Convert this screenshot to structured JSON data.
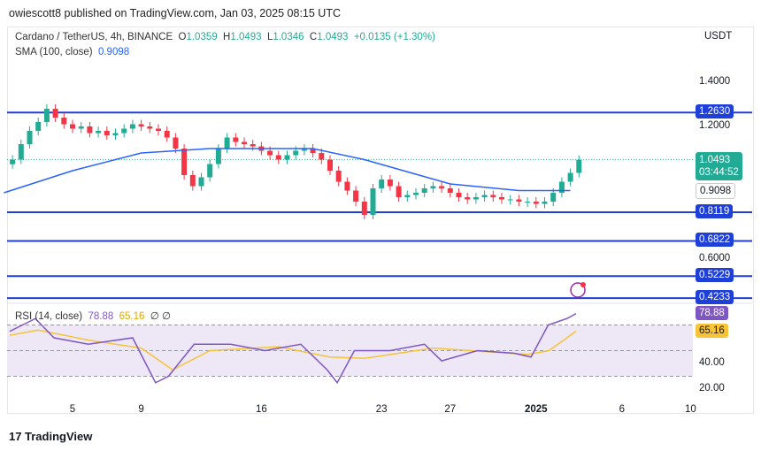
{
  "header": {
    "published": "owiescott8 published on TradingView.com, Jan 03, 2025 08:15 UTC"
  },
  "legend": {
    "symbol": "Cardano / TetherUS, 4h, BINANCE",
    "o_label": "O",
    "o": "1.0359",
    "h_label": "H",
    "h": "1.0493",
    "l_label": "L",
    "l": "1.0346",
    "c_label": "C",
    "c": "1.0493",
    "change": "+0.0135 (+1.30%)",
    "sma_label": "SMA (100, close)",
    "sma": "0.9098",
    "rsi_label": "RSI (14, close)",
    "rsi": "78.88",
    "rsi_ma": "65.16",
    "flags": "∅ ∅"
  },
  "brand": "TradingView",
  "currency": "USDT",
  "colors": {
    "up": "#22ab94",
    "down": "#f23645",
    "sma": "#2962ff",
    "levels": "#1e3fd8",
    "rsi": "#7e57c2",
    "rsi_ma": "#f7c338",
    "rsi_band": "#ede7f6"
  },
  "chart_data": [
    {
      "type": "candlestick",
      "interval": "4h",
      "start": "2024-12-01T12:00",
      "step_hours": 12,
      "closes": [
        1.05,
        1.12,
        1.18,
        1.22,
        1.28,
        1.24,
        1.21,
        1.19,
        1.2,
        1.17,
        1.18,
        1.16,
        1.17,
        1.19,
        1.21,
        1.2,
        1.19,
        1.18,
        1.15,
        1.1,
        0.98,
        0.93,
        0.97,
        1.03,
        1.1,
        1.15,
        1.13,
        1.12,
        1.11,
        1.09,
        1.07,
        1.05,
        1.07,
        1.09,
        1.1,
        1.08,
        1.05,
        1.0,
        0.95,
        0.91,
        0.86,
        0.8,
        0.92,
        0.96,
        0.93,
        0.88,
        0.89,
        0.9,
        0.92,
        0.93,
        0.92,
        0.9,
        0.88,
        0.87,
        0.88,
        0.89,
        0.88,
        0.87,
        0.87,
        0.86,
        0.86,
        0.85,
        0.86,
        0.9,
        0.95,
        0.99,
        1.0493
      ],
      "sma": [
        [
          "2024-12-01",
          0.9
        ],
        [
          "2024-12-05",
          1.0
        ],
        [
          "2024-12-09",
          1.08
        ],
        [
          "2024-12-13",
          1.1
        ],
        [
          "2024-12-19",
          1.1
        ],
        [
          "2024-12-22",
          1.05
        ],
        [
          "2024-12-27",
          0.94
        ],
        [
          "2024-12-31",
          0.91
        ],
        [
          "2025-01-03",
          0.9098
        ]
      ],
      "levels": [
        1.263,
        0.8119,
        0.6822,
        0.5229,
        0.4233
      ],
      "price_ticks": [
        "1.4000",
        "1.2000",
        "0.6000"
      ],
      "ylim": [
        0.42,
        1.42
      ],
      "x_ticks": [
        {
          "label": "5",
          "date": "2024-12-05"
        },
        {
          "label": "9",
          "date": "2024-12-09"
        },
        {
          "label": "16",
          "date": "2024-12-16"
        },
        {
          "label": "23",
          "date": "2024-12-23"
        },
        {
          "label": "27",
          "date": "2024-12-27"
        },
        {
          "label": "2025",
          "date": "2025-01-01"
        },
        {
          "label": "6",
          "date": "2025-01-06"
        },
        {
          "label": "10",
          "date": "2025-01-10"
        }
      ],
      "last_price": "1.0493",
      "countdown": "03:44:52",
      "sma_tag": "0.9098"
    },
    {
      "type": "line",
      "name": "RSI (14, close)",
      "rsi": [
        [
          "2024-12-01T08:00",
          65
        ],
        [
          "2024-12-02T20:00",
          75
        ],
        [
          "2024-12-03T22:00",
          60
        ],
        [
          "2024-12-05T22:00",
          55
        ],
        [
          "2024-12-08T12:00",
          60
        ],
        [
          "2024-12-09T20:00",
          25
        ],
        [
          "2024-12-10T14:00",
          30
        ],
        [
          "2024-12-12T02:00",
          55
        ],
        [
          "2024-12-14T05:00",
          55
        ],
        [
          "2024-12-16T05:00",
          50
        ],
        [
          "2024-12-18T07:00",
          55
        ],
        [
          "2024-12-19T20:00",
          35
        ],
        [
          "2024-12-20T10:00",
          25
        ],
        [
          "2024-12-21T10:00",
          50
        ],
        [
          "2024-12-23T12:00",
          50
        ],
        [
          "2024-12-25T12:00",
          55
        ],
        [
          "2024-12-26T12:00",
          42
        ],
        [
          "2024-12-28T14:00",
          50
        ],
        [
          "2024-12-30T17:00",
          48
        ],
        [
          "2024-12-31T17:00",
          45
        ],
        [
          "2025-01-01T17:00",
          70
        ],
        [
          "2025-01-02T19:00",
          75
        ],
        [
          "2025-01-03T08:00",
          78.88
        ]
      ],
      "rsi_ma": [
        [
          "2024-12-01T08:00",
          62
        ],
        [
          "2024-12-03T00:00",
          66
        ],
        [
          "2024-12-06T00:00",
          58
        ],
        [
          "2024-12-09T00:00",
          52
        ],
        [
          "2024-12-10T20:00",
          35
        ],
        [
          "2024-12-13T00:00",
          50
        ],
        [
          "2024-12-17T00:00",
          53
        ],
        [
          "2024-12-20T00:00",
          45
        ],
        [
          "2024-12-22T00:00",
          44
        ],
        [
          "2024-12-26T00:00",
          52
        ],
        [
          "2024-12-31T12:00",
          47
        ],
        [
          "2025-01-01T18:00",
          50
        ],
        [
          "2025-01-03T08:00",
          65.16
        ]
      ],
      "ticks": [
        "20.00",
        "40.00"
      ],
      "bands": [
        70,
        50,
        30
      ],
      "ylim": [
        10,
        90
      ]
    }
  ]
}
